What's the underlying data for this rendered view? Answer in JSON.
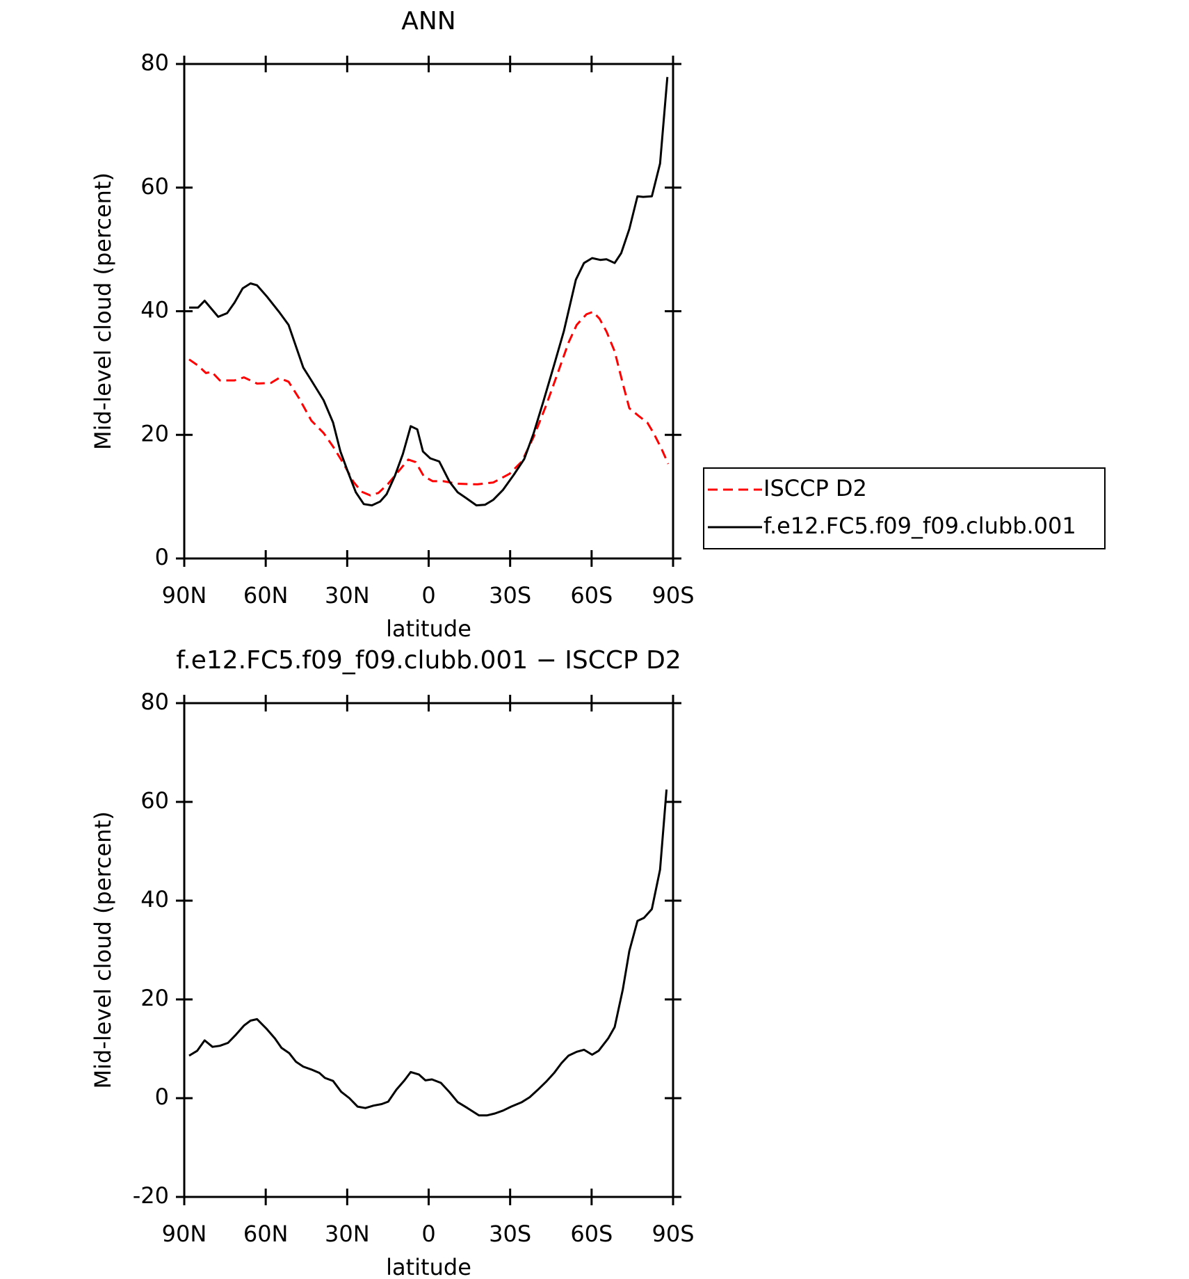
{
  "chart_data": [
    {
      "type": "line",
      "title": "ANN",
      "xlabel": "latitude",
      "ylabel": "Mid-level cloud (percent)",
      "xlim": [
        90,
        -90
      ],
      "xticks": [
        {
          "value": 90,
          "label": "90N"
        },
        {
          "value": 60,
          "label": "60N"
        },
        {
          "value": 30,
          "label": "30N"
        },
        0,
        {
          "value": -30,
          "label": "30S"
        },
        {
          "value": -60,
          "label": "60S"
        },
        {
          "value": -90,
          "label": "90S"
        }
      ],
      "ylim": [
        0,
        80
      ],
      "yticks": [
        0,
        20,
        40,
        60,
        80
      ],
      "legend": "right",
      "series": [
        {
          "name": "ISCCP D2",
          "color": "#ff0000",
          "dash": true,
          "x": [
            88.2,
            84.9,
            82.0,
            79.9,
            76.9,
            71.5,
            68.0,
            63.2,
            58.1,
            55.1,
            51.6,
            47.7,
            43.2,
            38.7,
            35.2,
            31.3,
            27.7,
            24.7,
            21.5,
            18.5,
            14.9,
            11.3,
            7.5,
            4.8,
            1.8,
            -1.5,
            -5.4,
            -10.4,
            -17.9,
            -23.8,
            -29.8,
            -34.3,
            -38.7,
            -43.2,
            -47.7,
            -51.5,
            -54.5,
            -58.1,
            -60.5,
            -62.9,
            -65.5,
            -68.5,
            -71.5,
            -73.9,
            -77.5,
            -80.5,
            -82.8,
            -85.8,
            -88.2
          ],
          "values": [
            32.2,
            31.2,
            30.0,
            30.2,
            28.8,
            28.8,
            29.3,
            28.3,
            28.4,
            29.2,
            28.6,
            25.9,
            22.3,
            20.3,
            18.1,
            15.3,
            12.4,
            10.8,
            10.2,
            10.6,
            12.1,
            14.0,
            16.0,
            15.6,
            13.3,
            12.5,
            12.5,
            12.1,
            12.0,
            12.3,
            13.7,
            15.7,
            19.7,
            24.7,
            30.2,
            34.9,
            37.8,
            39.5,
            39.9,
            38.8,
            36.7,
            33.5,
            28.3,
            24.3,
            23.0,
            22.0,
            20.3,
            17.7,
            15.3
          ]
        },
        {
          "name": "f.e12.FC5.f09_f09.clubb.001",
          "color": "#000000",
          "dash": false,
          "x": [
            88.2,
            84.9,
            82.5,
            77.5,
            74.2,
            71.5,
            68.5,
            65.6,
            63.2,
            59.6,
            55.1,
            51.6,
            46.2,
            43.2,
            38.7,
            35.2,
            32.5,
            29.8,
            26.8,
            23.9,
            20.9,
            17.9,
            15.5,
            12.5,
            9.5,
            6.6,
            4.2,
            2.1,
            -0.6,
            -3.9,
            -7.7,
            -10.7,
            -13.7,
            -17.6,
            -20.8,
            -23.8,
            -27.4,
            -31.3,
            -35.2,
            -38.7,
            -42.3,
            -46.2,
            -49.8,
            -54.2,
            -57.2,
            -60.2,
            -63.2,
            -65.5,
            -68.5,
            -70.9,
            -73.9,
            -76.9,
            -79.0,
            -82.2,
            -85.2,
            -87.9
          ],
          "values": [
            40.6,
            40.6,
            41.7,
            39.1,
            39.7,
            41.4,
            43.7,
            44.5,
            44.2,
            42.4,
            39.9,
            37.8,
            30.9,
            28.8,
            25.6,
            22.0,
            17.3,
            14.1,
            10.7,
            8.8,
            8.6,
            9.2,
            10.4,
            13.3,
            16.9,
            21.4,
            20.9,
            17.3,
            16.2,
            15.7,
            12.4,
            10.7,
            9.8,
            8.6,
            8.7,
            9.5,
            11.1,
            13.5,
            16.1,
            20.3,
            25.5,
            31.3,
            36.8,
            45.1,
            47.8,
            48.6,
            48.3,
            48.4,
            47.8,
            49.4,
            53.3,
            58.6,
            58.5,
            58.6,
            63.9,
            77.9
          ]
        }
      ]
    },
    {
      "type": "line",
      "title": "f.e12.FC5.f09_f09.clubb.001 − ISCCP D2",
      "xlabel": "latitude",
      "ylabel": "Mid-level cloud (percent)",
      "xlim": [
        90,
        -90
      ],
      "xticks": [
        {
          "value": 90,
          "label": "90N"
        },
        {
          "value": 60,
          "label": "60N"
        },
        {
          "value": 30,
          "label": "30N"
        },
        0,
        {
          "value": -30,
          "label": "30S"
        },
        {
          "value": -60,
          "label": "60S"
        },
        {
          "value": -90,
          "label": "90S"
        }
      ],
      "ylim": [
        -20,
        80
      ],
      "yticks": [
        -20,
        0,
        20,
        40,
        60,
        80
      ],
      "series": [
        {
          "color": "#000000",
          "dash": false,
          "x": [
            88.2,
            85.2,
            82.5,
            79.6,
            76.9,
            73.9,
            70.9,
            68.0,
            65.6,
            63.2,
            59.6,
            56.6,
            54.2,
            51.3,
            48.9,
            46.2,
            43.2,
            40.2,
            38.2,
            35.2,
            32.2,
            29.2,
            26.2,
            23.3,
            20.3,
            17.3,
            14.9,
            11.9,
            8.9,
            6.6,
            3.6,
            1.2,
            -1.2,
            -4.5,
            -7.7,
            -10.7,
            -14.3,
            -18.5,
            -21.4,
            -24.4,
            -27.4,
            -30.4,
            -34.3,
            -37.2,
            -40.2,
            -43.2,
            -46.2,
            -48.9,
            -51.5,
            -54.5,
            -57.2,
            -60.2,
            -62.6,
            -66.1,
            -68.5,
            -71.5,
            -73.9,
            -76.9,
            -79.3,
            -82.2,
            -85.2,
            -87.6
          ],
          "values": [
            8.6,
            9.6,
            11.7,
            10.4,
            10.6,
            11.2,
            12.9,
            14.7,
            15.7,
            16.0,
            14.0,
            12.1,
            10.2,
            9.1,
            7.4,
            6.4,
            5.8,
            5.1,
            4.1,
            3.5,
            1.3,
            0,
            -1.7,
            -2.0,
            -1.5,
            -1.2,
            -0.7,
            1.7,
            3.6,
            5.3,
            4.8,
            3.6,
            3.8,
            3.1,
            1.2,
            -0.8,
            -2.0,
            -3.5,
            -3.5,
            -3.1,
            -2.5,
            -1.7,
            -0.8,
            0.2,
            1.7,
            3.3,
            5.1,
            7.1,
            8.6,
            9.4,
            9.8,
            8.8,
            9.6,
            12.1,
            14.4,
            22.0,
            29.8,
            35.9,
            36.5,
            38.3,
            46.3,
            62.5
          ]
        }
      ]
    }
  ]
}
